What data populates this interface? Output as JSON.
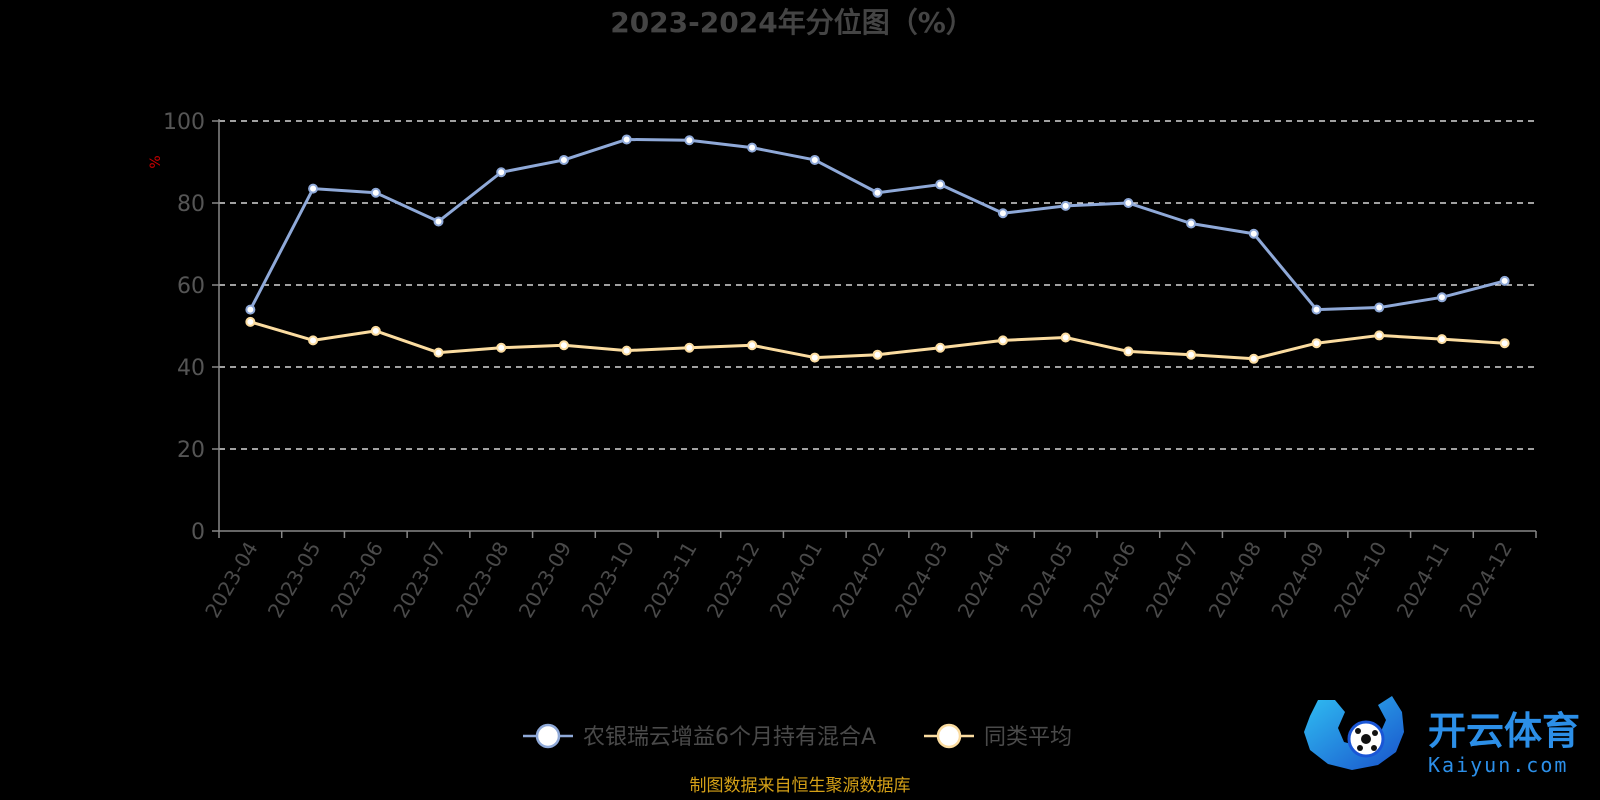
{
  "chart_data": {
    "type": "line",
    "title": "2023-2024年分位图（%）",
    "ylabel": "%",
    "ylim": [
      0,
      100
    ],
    "y_ticks": [
      "0",
      "20",
      "40",
      "60",
      "80",
      "100"
    ],
    "y_tick_values": [
      0,
      20,
      40,
      60,
      80,
      100
    ],
    "grid": true,
    "grid_style": "dashed",
    "legend_position": "bottom",
    "categories": [
      "2023-04",
      "2023-05",
      "2023-06",
      "2023-07",
      "2023-08",
      "2023-09",
      "2023-10",
      "2023-11",
      "2023-12",
      "2024-01",
      "2024-02",
      "2024-03",
      "2024-04",
      "2024-05",
      "2024-06",
      "2024-07",
      "2024-08",
      "2024-09",
      "2024-10",
      "2024-11",
      "2024-12"
    ],
    "series": [
      {
        "name": "农银瑞云增益6个月持有混合A",
        "color": "#8fa9d8",
        "values": [
          54,
          83.5,
          82.5,
          75.5,
          87.5,
          90.5,
          95.5,
          95.3,
          93.5,
          90.5,
          82.5,
          84.5,
          77.5,
          79.3,
          80,
          75,
          72.5,
          54,
          54.5,
          57,
          61
        ]
      },
      {
        "name": "同类平均",
        "color": "#fbdca0",
        "values": [
          51,
          46.5,
          48.8,
          43.5,
          44.7,
          45.3,
          44,
          44.7,
          45.3,
          42.3,
          43,
          44.7,
          46.5,
          47.2,
          43.8,
          43,
          42,
          45.8,
          47.7,
          46.8,
          45.8
        ]
      }
    ]
  },
  "colors": {
    "background": "#000000",
    "axis": "#888888",
    "grid": "#ffffff",
    "title": "#444444",
    "tick_text": "#555555",
    "ylabel": "#cc0000",
    "source_text": "#d4a017",
    "marker_fill": "#ffffff"
  },
  "source": "制图数据来自恒生聚源数据库",
  "watermark": {
    "cn": "开云体育",
    "en": "Kaiyun.com",
    "icon": "kaiyun-logo-icon"
  }
}
